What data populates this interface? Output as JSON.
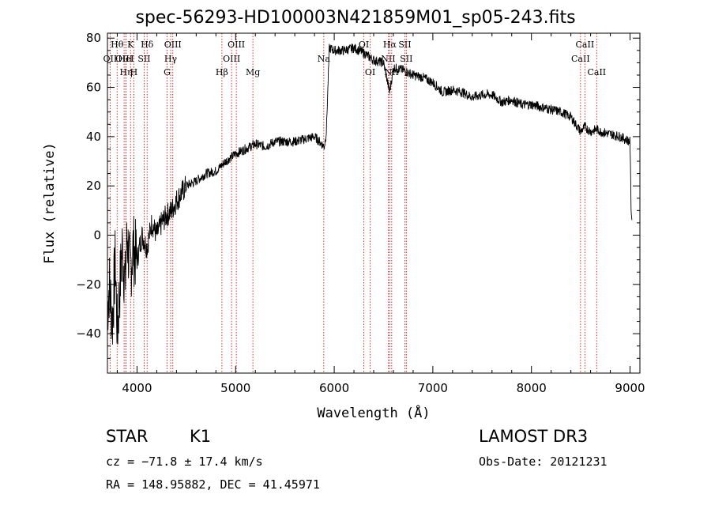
{
  "chart_data": {
    "type": "line",
    "title": "spec-56293-HD100003N421859M01_sp05-243.fits",
    "xlabel": "Wavelength (Å)",
    "ylabel": "Flux (relative)",
    "xlim": [
      3700,
      9100
    ],
    "ylim": [
      -56,
      82
    ],
    "xticks": [
      4000,
      5000,
      6000,
      7000,
      8000,
      9000
    ],
    "yticks": [
      -40,
      -20,
      0,
      20,
      40,
      60,
      80
    ],
    "series": [
      {
        "name": "flux",
        "x": [
          3700,
          3720,
          3750,
          3780,
          3800,
          3820,
          3850,
          3880,
          3900,
          3930,
          3960,
          4000,
          4050,
          4100,
          4150,
          4200,
          4250,
          4300,
          4350,
          4400,
          4450,
          4500,
          4600,
          4700,
          4800,
          4900,
          5000,
          5100,
          5200,
          5300,
          5400,
          5500,
          5600,
          5700,
          5800,
          5900,
          5920,
          5950,
          6000,
          6100,
          6200,
          6300,
          6400,
          6500,
          6562,
          6600,
          6700,
          6800,
          6900,
          7000,
          7100,
          7200,
          7300,
          7400,
          7500,
          7600,
          7700,
          7800,
          7900,
          8000,
          8100,
          8200,
          8300,
          8400,
          8498,
          8542,
          8600,
          8662,
          8700,
          8800,
          8900,
          9000,
          9010,
          9020
        ],
        "values": [
          -30,
          -20,
          -35,
          -10,
          -40,
          -25,
          -5,
          -20,
          0,
          -15,
          -5,
          -10,
          0,
          -5,
          5,
          0,
          5,
          8,
          10,
          14,
          17,
          20,
          22,
          25,
          26,
          30,
          33,
          35,
          37,
          36,
          38,
          38,
          38,
          39,
          40,
          36,
          42,
          76,
          75,
          75,
          76,
          74,
          71,
          70,
          58,
          68,
          67,
          65,
          64,
          62,
          58,
          59,
          58,
          56,
          57,
          57,
          54,
          55,
          53,
          53,
          52,
          51,
          50,
          48,
          42,
          44,
          42,
          43,
          42,
          41,
          40,
          38,
          12,
          5
        ]
      }
    ],
    "lines": [
      {
        "name": "OII",
        "x": 3727,
        "row": 2
      },
      {
        "name": "Hθ",
        "x": 3798,
        "row": 1
      },
      {
        "name": "OIII",
        "x": 3869,
        "row": 2
      },
      {
        "name": "Hη",
        "x": 3889,
        "row": 3
      },
      {
        "name": "HeI",
        "x": 3889,
        "row": 2
      },
      {
        "name": "K",
        "x": 3934,
        "row": 1
      },
      {
        "name": "H",
        "x": 3968,
        "row": 3
      },
      {
        "name": "SII",
        "x": 4072,
        "row": 2
      },
      {
        "name": "Hδ",
        "x": 4102,
        "row": 1
      },
      {
        "name": "Hγ",
        "x": 4341,
        "row": 2
      },
      {
        "name": "G",
        "x": 4305,
        "row": 3
      },
      {
        "name": "OIII",
        "x": 4363,
        "row": 1
      },
      {
        "name": "Hβ",
        "x": 4861,
        "row": 3
      },
      {
        "name": "OIII",
        "x": 4959,
        "row": 2
      },
      {
        "name": "OIII",
        "x": 5007,
        "row": 1
      },
      {
        "name": "Mg",
        "x": 5175,
        "row": 3
      },
      {
        "name": "Na",
        "x": 5894,
        "row": 2
      },
      {
        "name": "OI",
        "x": 6300,
        "row": 1
      },
      {
        "name": "OI",
        "x": 6364,
        "row": 3
      },
      {
        "name": "NII",
        "x": 6548,
        "row": 2
      },
      {
        "name": "Hα",
        "x": 6563,
        "row": 1
      },
      {
        "name": "NII",
        "x": 6583,
        "row": 3
      },
      {
        "name": "SII",
        "x": 6716,
        "row": 1
      },
      {
        "name": "SII",
        "x": 6731,
        "row": 2
      },
      {
        "name": "CaII",
        "x": 8498,
        "row": 2
      },
      {
        "name": "CaII",
        "x": 8542,
        "row": 1
      },
      {
        "name": "CaII",
        "x": 8662,
        "row": 3
      }
    ]
  },
  "info": {
    "class": "STAR",
    "subclass": "K1",
    "survey": "LAMOST DR3",
    "cz": "cz = −71.8 ± 17.4 km/s",
    "obs_date": "Obs-Date: 20121231",
    "coords": "RA = 148.95882, DEC =  41.45971"
  },
  "colors": {
    "spectrum": "#000000",
    "lines": "#cc0000",
    "axes": "#000000"
  }
}
